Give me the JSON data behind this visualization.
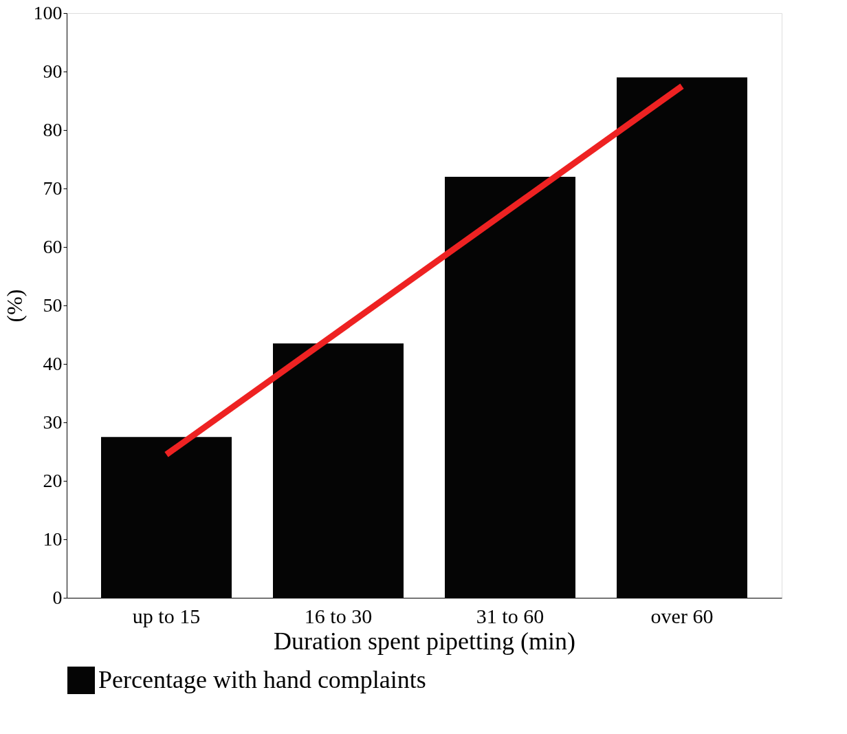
{
  "chart_data": {
    "type": "bar",
    "xlabel": "Duration spent pipetting (min)",
    "ylabel": "(%)",
    "categories": [
      "up to 15",
      "16 to 30",
      "31 to 60",
      "over 60"
    ],
    "series": [
      {
        "name": "Percentage with hand complaints",
        "color": "#050505",
        "values": [
          27.5,
          43.5,
          72,
          89
        ]
      },
      {
        "type": "line",
        "color": "#ee2222",
        "x": [
          "up to 15",
          "over 60"
        ],
        "values": [
          24.5,
          87.5
        ]
      }
    ],
    "ylim": [
      0,
      100
    ],
    "yticks": [
      0,
      10,
      20,
      30,
      40,
      50,
      60,
      70,
      80,
      90,
      100
    ],
    "grid": false,
    "legend": "bottom"
  }
}
